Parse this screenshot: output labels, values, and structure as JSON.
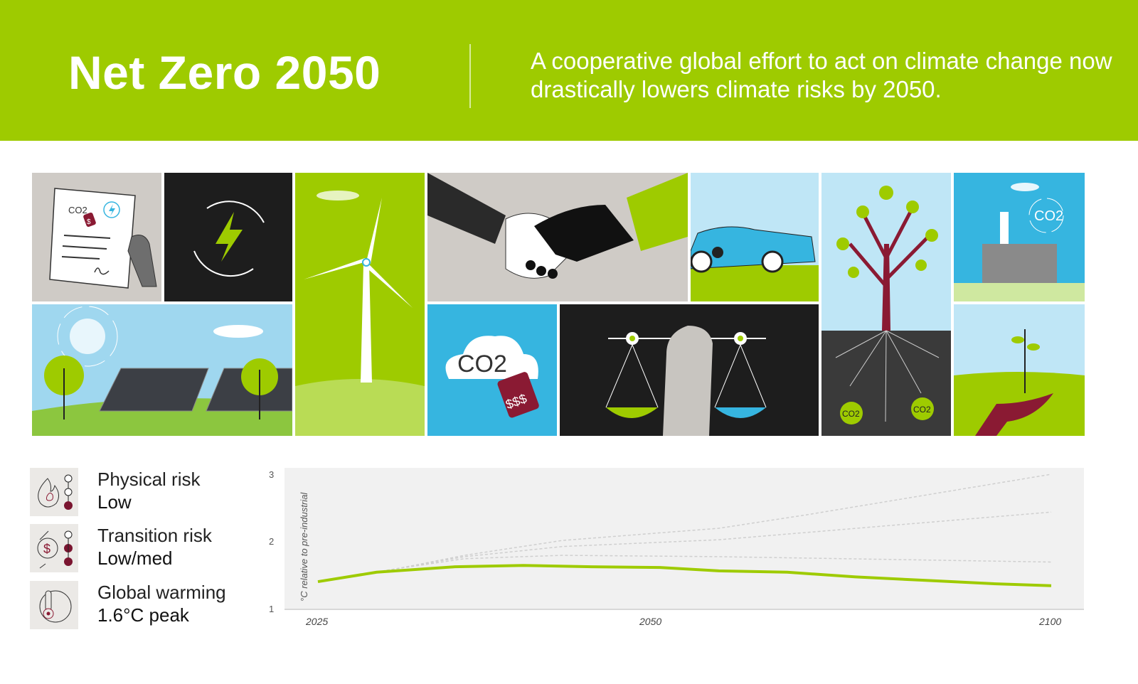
{
  "header": {
    "title": "Net Zero 2050",
    "subtitle": "A cooperative global effort to act on climate change now drastically lowers climate risks by 2050.",
    "background": "#9ecb00"
  },
  "illustrations": {
    "labels": {
      "doc_co2": "CO2",
      "doc_tag": "$",
      "cloud_co2": "CO2",
      "cloud_tag": "$$$",
      "factory_co2": "CO2",
      "root_co2_left": "CO2",
      "root_co2_right": "CO2"
    },
    "tiles": [
      "policy-document",
      "renewable-energy",
      "solar-panels",
      "wind-turbine",
      "handshake",
      "carbon-price",
      "balance-scales",
      "electric-car",
      "tree-carbon-sink",
      "factory-emissions",
      "seedling-in-hand"
    ]
  },
  "risks": [
    {
      "label": "Physical risk",
      "value": "Low",
      "icon": "flame-icon",
      "level": 1,
      "of": 3
    },
    {
      "label": "Transition risk",
      "value": "Low/med",
      "icon": "dollar-cycle-icon",
      "level": 2,
      "of": 3
    },
    {
      "label": "Global warming",
      "value": "1.6°C peak",
      "icon": "thermometer-globe-icon"
    }
  ],
  "colors": {
    "accent": "#9ecb00",
    "risk": "#7a1530",
    "chart_bg": "#f1f1f1"
  },
  "chart_data": {
    "type": "line",
    "ylabel": "°C relative to pre-industrial",
    "xlim": [
      2025,
      2100
    ],
    "ylim": [
      1,
      3
    ],
    "xticks": [
      "2025",
      "2050",
      "2100"
    ],
    "yticks": [
      "1",
      "2",
      "3"
    ],
    "grid": false,
    "series": [
      {
        "style": "solid-green",
        "x": [
          2025,
          2031,
          2039,
          2046,
          2053,
          2060,
          2066,
          2073,
          2080,
          2087,
          2094,
          2100
        ],
        "y": [
          1.41,
          1.55,
          1.63,
          1.65,
          1.63,
          1.62,
          1.57,
          1.55,
          1.48,
          1.43,
          1.38,
          1.35
        ]
      },
      {
        "style": "dashed-gray",
        "x": [
          2025,
          2033,
          2040,
          2050,
          2066,
          2075,
          2100
        ],
        "y": [
          1.41,
          1.6,
          1.8,
          2.02,
          2.2,
          2.4,
          3.0
        ]
      },
      {
        "style": "dashed-gray",
        "x": [
          2025,
          2033,
          2040,
          2050,
          2066,
          2100
        ],
        "y": [
          1.41,
          1.6,
          1.78,
          1.93,
          2.03,
          2.44
        ]
      },
      {
        "style": "dashed-gray",
        "x": [
          2025,
          2033,
          2040,
          2050,
          2066,
          2100
        ],
        "y": [
          1.41,
          1.6,
          1.75,
          1.8,
          1.78,
          1.7
        ]
      }
    ]
  }
}
